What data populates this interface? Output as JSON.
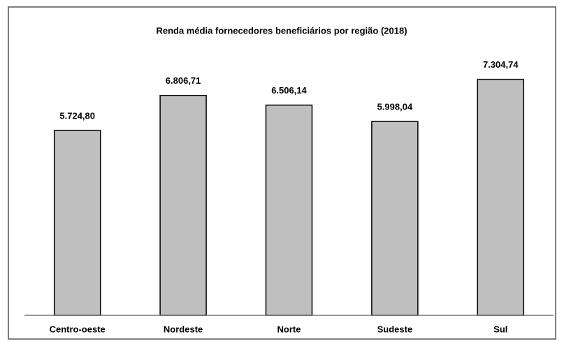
{
  "chart_data": {
    "type": "bar",
    "title": "Renda média fornecedores beneficiários por região (2018)",
    "categories": [
      "Centro-oeste",
      "Nordeste",
      "Norte",
      "Sudeste",
      "Sul"
    ],
    "values": [
      5724.8,
      6806.71,
      6506.14,
      5998.04,
      7304.74
    ],
    "value_labels": [
      "5.724,80",
      "6.806,71",
      "6.506,14",
      "5.998,04",
      "7.304,74"
    ],
    "color": "#bfbfbf",
    "ylim": [
      0,
      7600
    ]
  }
}
